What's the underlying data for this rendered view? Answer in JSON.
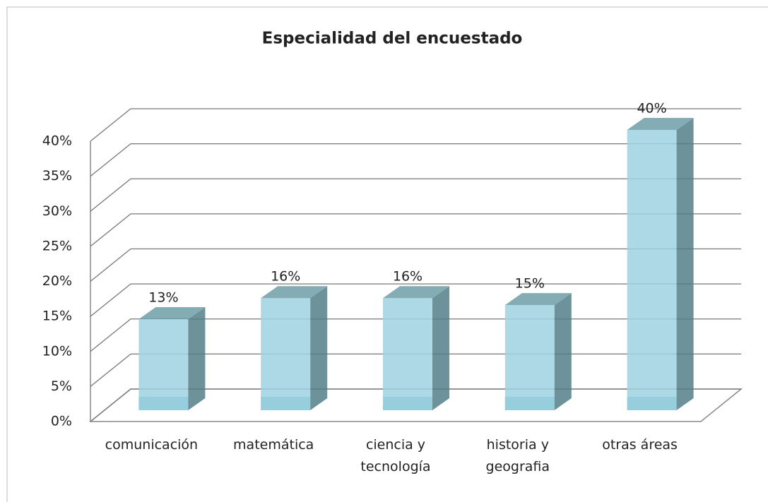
{
  "chart_data": {
    "type": "bar3d",
    "title": "Especialidad del encuestado",
    "categories": [
      "comunicación",
      "matemática",
      "ciencia y tecnología",
      "historia y geografia",
      "otras áreas"
    ],
    "values": [
      13,
      16,
      16,
      15,
      40
    ],
    "value_labels": [
      "13%",
      "16%",
      "16%",
      "15%",
      "40%"
    ],
    "color": "#9fd3e2",
    "ylim": [
      0,
      40
    ],
    "yticks": [
      {
        "value": 0,
        "label": "0%"
      },
      {
        "value": 5,
        "label": "5%"
      },
      {
        "value": 10,
        "label": "10%"
      },
      {
        "value": 15,
        "label": "15%"
      },
      {
        "value": 20,
        "label": "20%"
      },
      {
        "value": 25,
        "label": "25%"
      },
      {
        "value": 30,
        "label": "30%"
      },
      {
        "value": 35,
        "label": "35%"
      },
      {
        "value": 40,
        "label": "40%"
      }
    ],
    "grid": true
  }
}
